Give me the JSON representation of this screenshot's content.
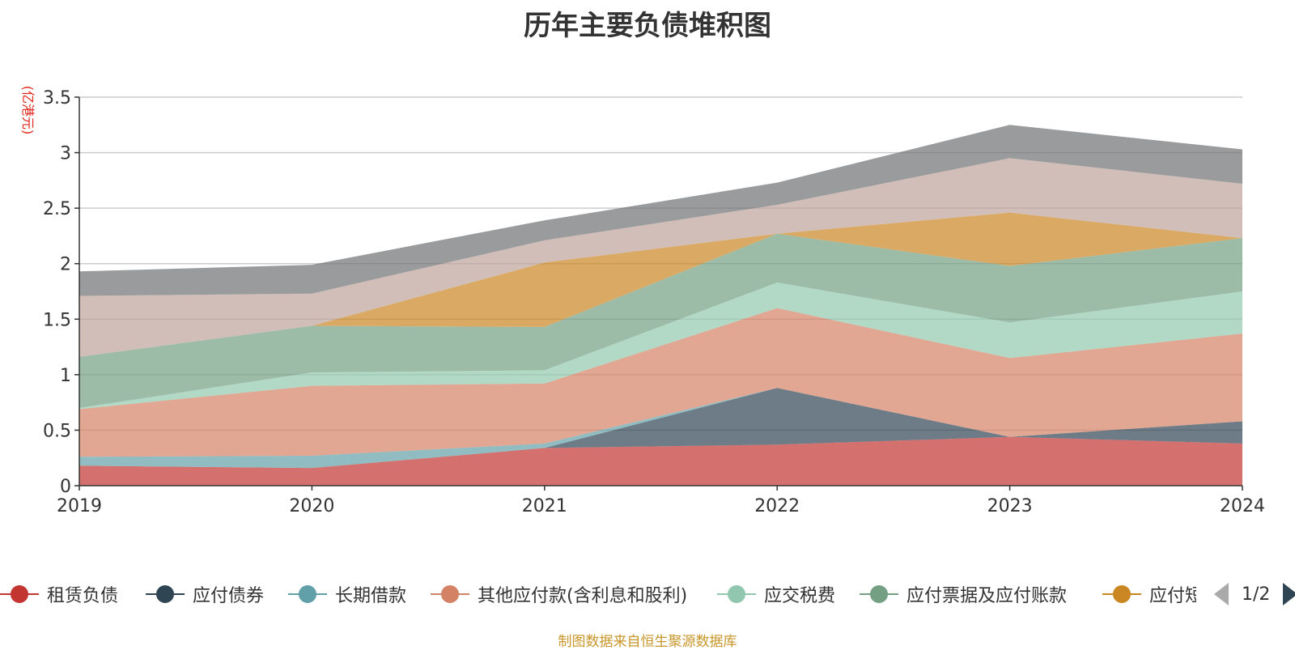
{
  "chart_data": {
    "type": "area",
    "stacked": true,
    "title": "历年主要负债堆积图",
    "ylabel": "(亿港元)",
    "xlabel": "",
    "x": [
      "2019",
      "2020",
      "2021",
      "2022",
      "2023",
      "2024"
    ],
    "ylim": [
      0,
      3.5
    ],
    "yticks": [
      "0",
      "0.5",
      "1",
      "1.5",
      "2",
      "2.5",
      "3",
      "3.5"
    ],
    "grid": true,
    "legend_position": "bottom",
    "series": [
      {
        "name": "租赁负债",
        "color": "#c23531",
        "values": [
          0.18,
          0.16,
          0.34,
          0.37,
          0.44,
          0.38
        ]
      },
      {
        "name": "应付债券",
        "color": "#2f4554",
        "values": [
          0.0,
          0.0,
          0.0,
          0.51,
          0.0,
          0.2
        ]
      },
      {
        "name": "长期借款",
        "color": "#61a0a8",
        "values": [
          0.08,
          0.11,
          0.04,
          0.0,
          0.0,
          0.0
        ]
      },
      {
        "name": "其他应付款(含利息和股利)",
        "color": "#d48265",
        "values": [
          0.43,
          0.63,
          0.54,
          0.72,
          0.71,
          0.79
        ]
      },
      {
        "name": "应交税费",
        "color": "#91c7ae",
        "values": [
          0.01,
          0.12,
          0.12,
          0.23,
          0.32,
          0.38
        ]
      },
      {
        "name": "应付票据及应付账款",
        "color": "#749f83",
        "values": [
          0.46,
          0.42,
          0.39,
          0.44,
          0.51,
          0.48
        ]
      },
      {
        "name": "应付短期融资款",
        "color": "#ca8622",
        "values": [
          0.0,
          0.0,
          0.58,
          0.0,
          0.48,
          0.0
        ]
      },
      {
        "name": "",
        "color": "#bda29a",
        "values": [
          0.55,
          0.29,
          0.2,
          0.26,
          0.49,
          0.49
        ]
      },
      {
        "name": "",
        "color": "#6e7074",
        "values": [
          0.22,
          0.26,
          0.18,
          0.2,
          0.3,
          0.31
        ]
      }
    ]
  },
  "legend": {
    "page_text": "1/2"
  },
  "source_note": "制图数据来自恒生聚源数据库"
}
